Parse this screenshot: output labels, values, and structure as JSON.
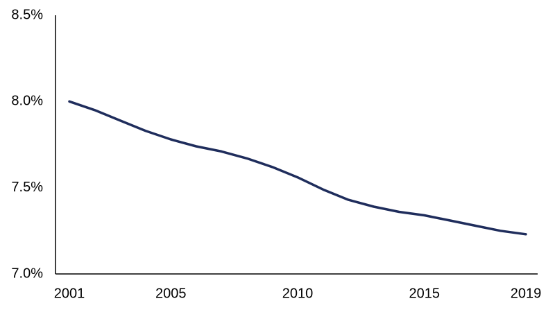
{
  "chart_data": {
    "type": "line",
    "x": [
      2001,
      2002,
      2003,
      2004,
      2005,
      2006,
      2007,
      2008,
      2009,
      2010,
      2011,
      2012,
      2013,
      2014,
      2015,
      2016,
      2017,
      2018,
      2019
    ],
    "series": [
      {
        "color": "#1f2d5c",
        "values": [
          8.0,
          7.95,
          7.89,
          7.83,
          7.78,
          7.74,
          7.71,
          7.67,
          7.62,
          7.56,
          7.49,
          7.43,
          7.39,
          7.36,
          7.34,
          7.31,
          7.28,
          7.25,
          7.23
        ]
      }
    ],
    "xlim": [
      2001,
      2019
    ],
    "xticks": [
      2001,
      2005,
      2010,
      2015,
      2019
    ],
    "ylim": [
      7.0,
      8.5
    ],
    "yticks": [
      {
        "value": 7.0,
        "label": "7.0%"
      },
      {
        "value": 7.5,
        "label": "7.5%"
      },
      {
        "value": 8.0,
        "label": "8.0%"
      },
      {
        "value": 8.5,
        "label": "8.5%"
      }
    ],
    "grid": false
  }
}
